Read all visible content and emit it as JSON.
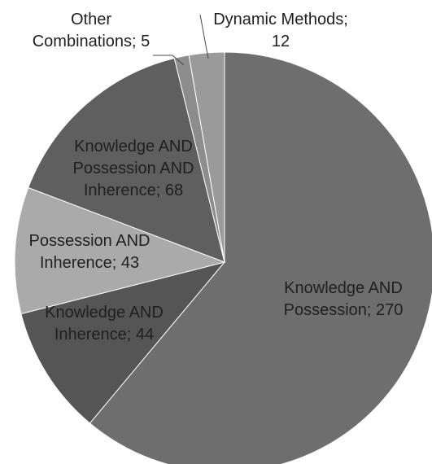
{
  "chart_data": {
    "type": "pie",
    "title": "",
    "slices": [
      {
        "label_lines": [
          "Knowledge AND",
          "Possession; 270"
        ],
        "name": "Knowledge AND Possession",
        "value": 270,
        "color": "#6e6e6e"
      },
      {
        "label_lines": [
          "Knowledge AND",
          "Inherence; 44"
        ],
        "name": "Knowledge AND Inherence",
        "value": 44,
        "color": "#555555"
      },
      {
        "label_lines": [
          "Possession AND",
          "Inherence; 43"
        ],
        "name": "Possession AND Inherence",
        "value": 43,
        "color": "#aaaaaa"
      },
      {
        "label_lines": [
          "Knowledge AND",
          "Possession AND",
          "Inherence; 68"
        ],
        "name": "Knowledge AND Possession AND Inherence",
        "value": 68,
        "color": "#5f5f5f"
      },
      {
        "label_lines": [
          "Other",
          "Combinations; 5"
        ],
        "name": "Other Combinations",
        "value": 5,
        "color": "#8d8d8d"
      },
      {
        "label_lines": [
          "Dynamic Methods;",
          "12"
        ],
        "name": "Dynamic Methods",
        "value": 12,
        "color": "#9a9a9a"
      }
    ],
    "start_angle_deg": 0,
    "direction": "clockwise",
    "legend": "none"
  }
}
